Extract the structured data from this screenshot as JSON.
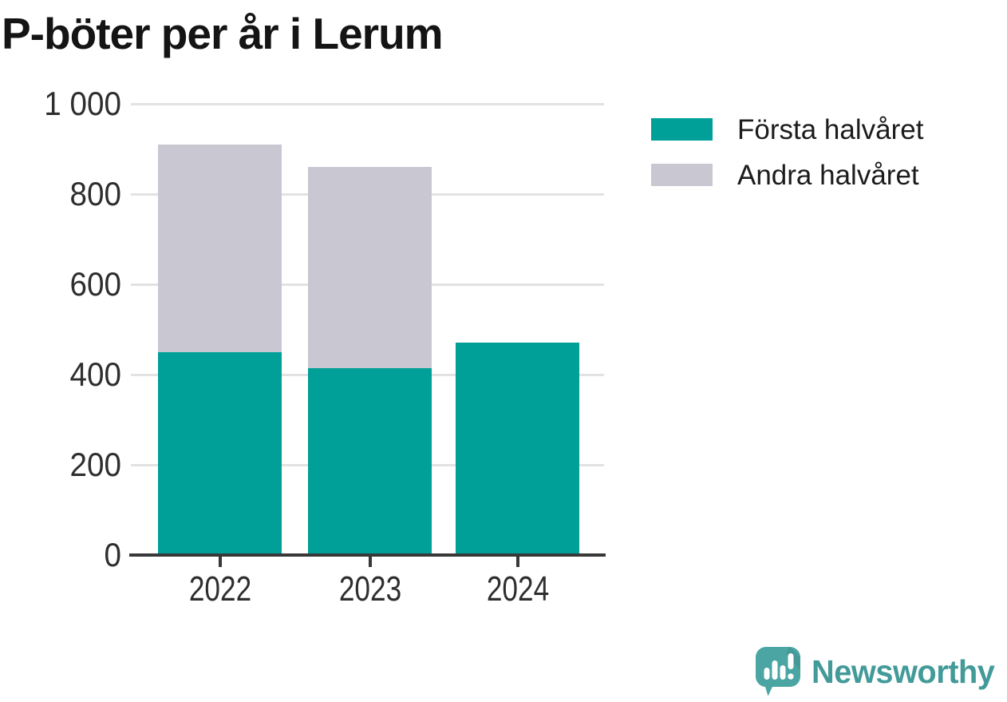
{
  "title": "P-böter per år i Lerum",
  "chart_data": {
    "type": "bar",
    "stacked": true,
    "title": "P-böter per år i Lerum",
    "categories": [
      "2022",
      "2023",
      "2024"
    ],
    "series": [
      {
        "name": "Första halvåret",
        "color": "#00a099",
        "values": [
          450,
          415,
          470
        ]
      },
      {
        "name": "Andra halvåret",
        "color": "#c9c7d1",
        "values": [
          460,
          445,
          0
        ]
      }
    ],
    "totals": [
      910,
      860,
      470
    ],
    "xlabel": "",
    "ylabel": "",
    "ylim": [
      0,
      1000
    ],
    "yticks": [
      {
        "value": 0,
        "label": "0"
      },
      {
        "value": 200,
        "label": "200"
      },
      {
        "value": 400,
        "label": "400"
      },
      {
        "value": 600,
        "label": "600"
      },
      {
        "value": 800,
        "label": "800"
      },
      {
        "value": 1000,
        "label": "1 000"
      }
    ],
    "grid": true,
    "legend_position": "top-right"
  },
  "branding": {
    "name": "Newsworthy",
    "logo_icon": "newsworthy-bubble-barchart-icon",
    "brand_color": "#429a99",
    "icon_color": "#4aa5a3"
  },
  "colors": {
    "first_half": "#00a099",
    "second_half": "#c9c7d1",
    "axis": "#383838",
    "grid": "#e2e2e2",
    "tick_text": "#2e2e2e",
    "title_text": "#141414"
  }
}
